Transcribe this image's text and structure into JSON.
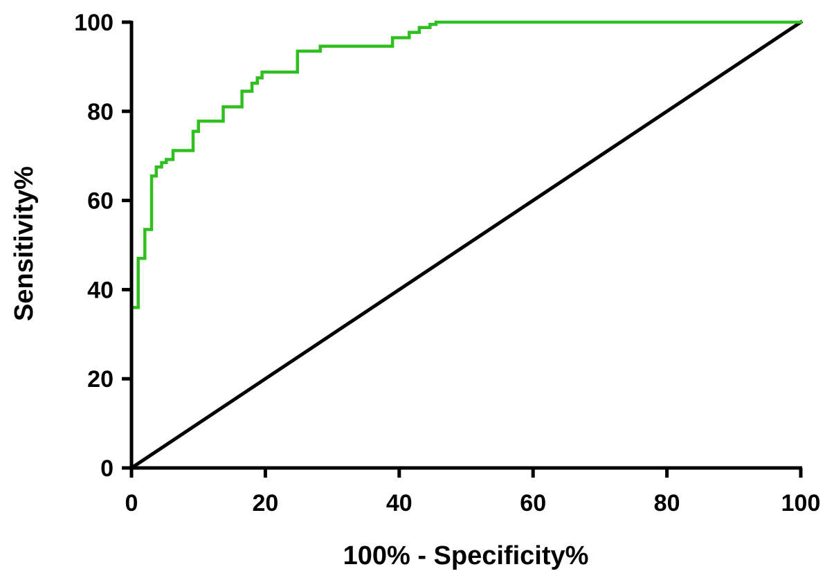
{
  "chart_data": {
    "type": "line",
    "title": "",
    "xlabel": "100% - Specificity%",
    "ylabel": "Sensitivity%",
    "xlim": [
      0,
      100
    ],
    "ylim": [
      0,
      100
    ],
    "xticks": [
      0,
      20,
      40,
      60,
      80,
      100
    ],
    "yticks": [
      0,
      20,
      40,
      60,
      80,
      100
    ],
    "grid": false,
    "series": [
      {
        "color": "#2fbf1f",
        "style": "step",
        "points": [
          [
            0,
            0
          ],
          [
            0,
            36
          ],
          [
            1,
            36
          ],
          [
            1,
            47
          ],
          [
            2,
            47
          ],
          [
            2,
            53.5
          ],
          [
            3,
            53.5
          ],
          [
            3,
            65.5
          ],
          [
            3.7,
            65.5
          ],
          [
            3.7,
            67.5
          ],
          [
            4.5,
            67.5
          ],
          [
            4.5,
            68.5
          ],
          [
            5.2,
            68.5
          ],
          [
            5.2,
            69.2
          ],
          [
            6.2,
            69.2
          ],
          [
            6.2,
            71.2
          ],
          [
            9.2,
            71.2
          ],
          [
            9.2,
            75.5
          ],
          [
            10,
            75.5
          ],
          [
            10,
            77.8
          ],
          [
            13.7,
            77.8
          ],
          [
            13.7,
            81
          ],
          [
            16.5,
            81
          ],
          [
            16.5,
            84.5
          ],
          [
            18,
            84.5
          ],
          [
            18,
            86.3
          ],
          [
            18.8,
            86.3
          ],
          [
            18.8,
            87.5
          ],
          [
            19.5,
            87.5
          ],
          [
            19.5,
            88.8
          ],
          [
            24.8,
            88.8
          ],
          [
            24.8,
            93.5
          ],
          [
            28.2,
            93.5
          ],
          [
            28.2,
            94.6
          ],
          [
            39,
            94.6
          ],
          [
            39,
            96.5
          ],
          [
            41.5,
            96.5
          ],
          [
            41.5,
            97.7
          ],
          [
            43,
            97.7
          ],
          [
            43,
            98.8
          ],
          [
            44.6,
            98.8
          ],
          [
            44.6,
            99.5
          ],
          [
            45.5,
            99.5
          ],
          [
            45.5,
            100
          ],
          [
            100,
            100
          ]
        ]
      },
      {
        "color": "#000000",
        "style": "line",
        "points": [
          [
            0,
            0
          ],
          [
            100,
            100
          ]
        ]
      }
    ]
  }
}
